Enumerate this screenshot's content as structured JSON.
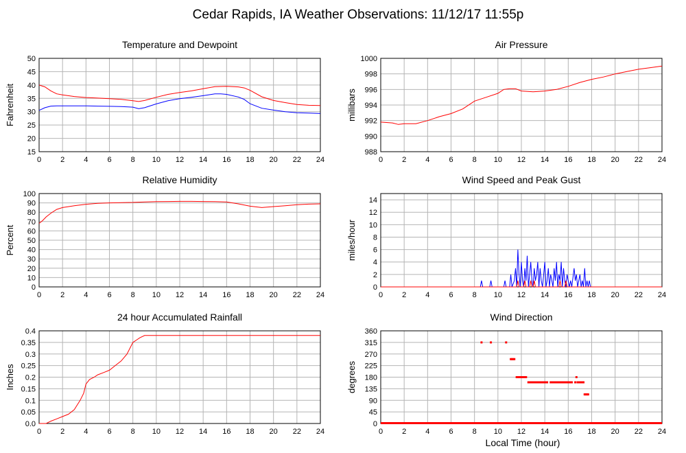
{
  "title": "Cedar Rapids, IA Weather Observations: 11/12/17 11:55p",
  "xlabel": "Local Time (hour)",
  "colors": {
    "red": "#ff0000",
    "blue": "#0000ff",
    "grid": "#b4b4b4"
  },
  "chart_data": [
    {
      "id": "temp",
      "type": "line",
      "title": "Temperature and Dewpoint",
      "ylabel": "Fahrenheit",
      "xlim": [
        0,
        24
      ],
      "ylim": [
        15,
        50
      ],
      "xticks": [
        0,
        2,
        4,
        6,
        8,
        10,
        12,
        14,
        16,
        18,
        20,
        22,
        24
      ],
      "yticks": [
        15,
        20,
        25,
        30,
        35,
        40,
        45,
        50
      ],
      "series": [
        {
          "color": "#ff0000",
          "x": [
            0,
            0.5,
            1,
            1.5,
            2,
            3,
            4,
            5,
            6,
            7,
            8,
            8.5,
            9,
            10,
            11,
            12,
            13,
            14,
            15,
            16,
            17,
            17.5,
            18,
            19,
            20,
            21,
            22,
            23,
            24
          ],
          "y": [
            40,
            39.3,
            37.8,
            36.7,
            36.3,
            35.7,
            35.3,
            35.1,
            34.9,
            34.6,
            34.1,
            33.8,
            34.2,
            35.4,
            36.5,
            37.2,
            37.8,
            38.6,
            39.4,
            39.5,
            39.3,
            38.9,
            38,
            35.6,
            34.2,
            33.4,
            32.7,
            32.4,
            32.3
          ]
        },
        {
          "color": "#0000ff",
          "x": [
            0,
            0.5,
            1,
            1.5,
            2,
            3,
            4,
            5,
            6,
            7,
            8,
            8.5,
            9,
            10,
            11,
            12,
            13,
            14,
            15,
            15.5,
            16,
            17,
            17.5,
            18,
            19,
            20,
            21,
            22,
            23,
            24
          ],
          "y": [
            30.5,
            31.5,
            32.1,
            32.2,
            32.2,
            32.2,
            32.2,
            32.1,
            32,
            31.9,
            31.7,
            31.1,
            31.5,
            32.9,
            34.1,
            34.9,
            35.4,
            36,
            36.7,
            36.7,
            36.5,
            35.5,
            34.6,
            33,
            31.3,
            30.6,
            30,
            29.6,
            29.5,
            29.3
          ]
        }
      ]
    },
    {
      "id": "pressure",
      "type": "line",
      "title": "Air Pressure",
      "ylabel": "millibars",
      "xlim": [
        0,
        24
      ],
      "ylim": [
        988,
        1000
      ],
      "xticks": [
        0,
        2,
        4,
        6,
        8,
        10,
        12,
        14,
        16,
        18,
        20,
        22,
        24
      ],
      "yticks": [
        988,
        990,
        992,
        994,
        996,
        998,
        1000
      ],
      "series": [
        {
          "color": "#ff0000",
          "x": [
            0,
            1,
            1.5,
            2,
            3,
            4,
            5,
            6,
            7,
            8,
            9,
            10,
            10.5,
            11,
            11.5,
            12,
            13,
            14,
            15,
            16,
            17,
            18,
            19,
            20,
            21,
            22,
            23,
            24
          ],
          "y": [
            991.8,
            991.7,
            991.5,
            991.6,
            991.6,
            992,
            992.5,
            992.9,
            993.5,
            994.5,
            995,
            995.5,
            996,
            996.1,
            996.1,
            995.8,
            995.7,
            995.8,
            996,
            996.4,
            996.9,
            997.3,
            997.6,
            998,
            998.3,
            998.6,
            998.8,
            999
          ]
        }
      ]
    },
    {
      "id": "humidity",
      "type": "line",
      "title": "Relative Humidity",
      "ylabel": "Percent",
      "xlim": [
        0,
        24
      ],
      "ylim": [
        0,
        100
      ],
      "xticks": [
        0,
        2,
        4,
        6,
        8,
        10,
        12,
        14,
        16,
        18,
        20,
        22,
        24
      ],
      "yticks": [
        0,
        10,
        20,
        30,
        40,
        50,
        60,
        70,
        80,
        90,
        100
      ],
      "series": [
        {
          "color": "#ff0000",
          "x": [
            0,
            0.3,
            0.6,
            1,
            1.5,
            2,
            3,
            4,
            5,
            6,
            7,
            8,
            9,
            10,
            11,
            12,
            13,
            14,
            15,
            16,
            17,
            18,
            19,
            20,
            21,
            22,
            23,
            24
          ],
          "y": [
            68,
            71,
            75,
            79,
            83,
            85,
            87,
            88.5,
            89.5,
            90,
            90.3,
            90.5,
            91,
            91.3,
            91.5,
            91.6,
            91.6,
            91.5,
            91.3,
            91,
            89,
            86.5,
            85,
            86,
            87,
            88,
            88.7,
            89
          ]
        }
      ]
    },
    {
      "id": "wind",
      "type": "line",
      "title": "Wind Speed and Peak Gust",
      "ylabel": "miles/hour",
      "xlim": [
        0,
        24
      ],
      "ylim": [
        0,
        15
      ],
      "xticks": [
        0,
        2,
        4,
        6,
        8,
        10,
        12,
        14,
        16,
        18,
        20,
        22,
        24
      ],
      "yticks": [
        0,
        2,
        4,
        6,
        8,
        10,
        12,
        14
      ],
      "series": [
        {
          "color": "#0000ff",
          "x": [
            0,
            8.5,
            8.6,
            8.7,
            9.3,
            9.4,
            9.5,
            10.5,
            10.6,
            10.7,
            11,
            11.1,
            11.2,
            11.4,
            11.5,
            11.6,
            11.7,
            11.8,
            11.9,
            12,
            12.1,
            12.2,
            12.3,
            12.4,
            12.5,
            12.6,
            12.7,
            12.8,
            12.9,
            13,
            13.1,
            13.2,
            13.3,
            13.4,
            13.5,
            13.6,
            13.7,
            13.8,
            13.9,
            14,
            14.1,
            14.2,
            14.3,
            14.4,
            14.5,
            14.6,
            14.7,
            14.8,
            14.9,
            15,
            15.1,
            15.2,
            15.3,
            15.4,
            15.5,
            15.6,
            15.7,
            15.8,
            15.9,
            16,
            16.1,
            16.2,
            16.3,
            16.5,
            16.6,
            16.7,
            16.8,
            17,
            17.1,
            17.2,
            17.3,
            17.4,
            17.5,
            17.6,
            17.7,
            17.8,
            17.9,
            24
          ],
          "y": [
            0,
            0,
            1,
            0,
            0,
            1,
            0,
            0,
            1,
            0,
            0,
            2,
            0,
            1,
            3,
            0,
            6,
            2,
            0,
            4,
            1,
            0,
            3,
            1,
            5,
            0,
            2,
            4,
            1,
            0,
            3,
            1,
            2,
            4,
            0,
            3,
            1,
            0,
            2,
            4,
            0,
            1,
            3,
            0,
            2,
            1,
            0,
            3,
            1,
            4,
            0,
            2,
            1,
            4,
            0,
            3,
            1,
            0,
            2,
            1,
            0,
            1,
            0,
            3,
            1,
            2,
            0,
            2,
            0,
            1,
            0,
            3,
            0,
            1,
            0,
            1,
            0,
            0
          ]
        },
        {
          "color": "#ff0000",
          "x": [
            0,
            11.6,
            11.7,
            11.8,
            12.2,
            12.3,
            12.4,
            12.7,
            12.8,
            12.9,
            13.0,
            13.1,
            13.2,
            15.2,
            15.3,
            15.4,
            15.7,
            15.8,
            15.9,
            24
          ],
          "y": [
            0,
            0,
            1,
            0,
            0,
            1,
            0,
            0,
            1,
            0,
            0,
            1,
            0,
            0,
            1,
            0,
            0,
            1,
            0,
            0
          ]
        }
      ]
    },
    {
      "id": "rain",
      "type": "line",
      "title": "24 hour Accumulated Rainfall",
      "ylabel": "Inches",
      "xlim": [
        0,
        24
      ],
      "ylim": [
        0,
        0.4
      ],
      "xticks": [
        0,
        2,
        4,
        6,
        8,
        10,
        12,
        14,
        16,
        18,
        20,
        22,
        24
      ],
      "yticks": [
        0.0,
        0.05,
        0.1,
        0.15,
        0.2,
        0.25,
        0.3,
        0.35,
        0.4
      ],
      "ytick_labels": [
        "0.0",
        "0.05",
        "0.1",
        "0.15",
        "0.2",
        "0.25",
        "0.3",
        "0.35",
        "0.4"
      ],
      "series": [
        {
          "color": "#ff0000",
          "x": [
            0,
            0.6,
            1,
            1.5,
            2,
            2.5,
            3,
            3.5,
            3.8,
            4,
            4.3,
            4.7,
            5,
            5.5,
            6,
            6.5,
            7,
            7.5,
            7.8,
            8,
            8.3,
            8.6,
            9,
            10,
            12,
            14,
            16,
            18,
            20,
            22,
            24
          ],
          "y": [
            0,
            0,
            0.01,
            0.02,
            0.03,
            0.04,
            0.06,
            0.1,
            0.13,
            0.17,
            0.19,
            0.2,
            0.21,
            0.22,
            0.23,
            0.25,
            0.27,
            0.3,
            0.33,
            0.35,
            0.36,
            0.37,
            0.38,
            0.38,
            0.38,
            0.38,
            0.38,
            0.38,
            0.38,
            0.38,
            0.38
          ]
        }
      ]
    },
    {
      "id": "direction",
      "type": "scatter",
      "title": "Wind Direction",
      "ylabel": "degrees",
      "xlim": [
        0,
        24
      ],
      "ylim": [
        0,
        360
      ],
      "xticks": [
        0,
        2,
        4,
        6,
        8,
        10,
        12,
        14,
        16,
        18,
        20,
        22,
        24
      ],
      "yticks": [
        0,
        45,
        90,
        135,
        180,
        225,
        270,
        315,
        360
      ],
      "series": [
        {
          "color": "#ff0000",
          "x": [
            8.6,
            9.4,
            10.7,
            11.1,
            11.2,
            11.3,
            11.4,
            11.6,
            11.7,
            11.8,
            11.9,
            12.0,
            12.1,
            12.2,
            12.3,
            12.4,
            12.6,
            12.7,
            12.8,
            12.9,
            13.0,
            13.1,
            13.2,
            13.3,
            13.4,
            13.5,
            13.6,
            13.7,
            13.8,
            13.9,
            14.0,
            14.1,
            14.2,
            14.5,
            14.6,
            14.7,
            14.8,
            14.9,
            15.0,
            15.1,
            15.2,
            15.3,
            15.4,
            15.5,
            15.6,
            15.7,
            15.8,
            15.9,
            16.0,
            16.1,
            16.2,
            16.3,
            16.6,
            16.7,
            16.8,
            16.9,
            17.0,
            17.1,
            17.2,
            17.3,
            17.4,
            17.5,
            17.6,
            17.7
          ],
          "y": [
            315,
            315,
            315,
            250,
            250,
            250,
            250,
            180,
            180,
            180,
            180,
            180,
            180,
            180,
            180,
            180,
            160,
            160,
            160,
            160,
            160,
            160,
            160,
            160,
            160,
            160,
            160,
            160,
            160,
            160,
            160,
            160,
            160,
            160,
            160,
            160,
            160,
            160,
            160,
            160,
            160,
            160,
            160,
            160,
            160,
            160,
            160,
            160,
            160,
            160,
            160,
            160,
            160,
            180,
            160,
            160,
            160,
            160,
            160,
            160,
            113,
            113,
            113,
            113
          ]
        }
      ],
      "baseline_zero": true
    }
  ]
}
